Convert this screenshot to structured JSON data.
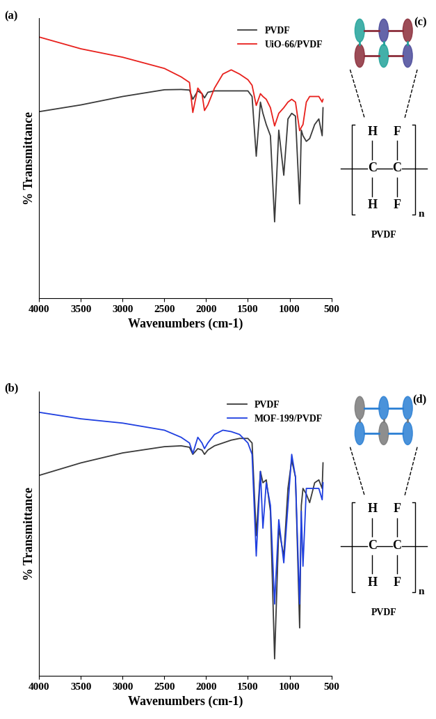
{
  "chart_data": [
    {
      "type": "line",
      "panel_label": "(a)",
      "x_label": "Wavenumbers (cm-1)",
      "y_label": "% Transmittance",
      "xlim": [
        4000,
        500
      ],
      "xticks": [
        4000,
        3500,
        3000,
        2500,
        2000,
        1500,
        1000,
        500
      ],
      "ylim": [
        0,
        100
      ],
      "tick_labels": "x",
      "legend": "upper right",
      "x": [
        4000,
        3500,
        3000,
        2500,
        2300,
        2200,
        2160,
        2100,
        2050,
        2020,
        1980,
        1900,
        1800,
        1700,
        1600,
        1500,
        1450,
        1400,
        1350,
        1320,
        1280,
        1230,
        1180,
        1130,
        1070,
        1020,
        975,
        930,
        880,
        860,
        840,
        800,
        760,
        700,
        650,
        610,
        600
      ],
      "series": [
        {
          "name": "PVDF",
          "color": "#3a3a3a",
          "values": [
            66.6,
            69,
            72,
            74.4,
            74.5,
            74.3,
            71,
            74,
            73,
            71.5,
            73.5,
            74,
            74,
            74,
            74,
            74,
            72,
            50.7,
            70,
            66,
            62,
            58,
            27.3,
            60,
            43.9,
            64,
            66,
            65,
            33.7,
            60,
            58,
            56,
            57,
            62,
            64,
            58,
            68
          ]
        },
        {
          "name": "UiO-66/PVDF",
          "color": "#e8201c",
          "values": [
            93.2,
            89,
            86,
            82,
            79,
            77,
            66.3,
            75,
            73,
            67,
            69,
            75,
            80,
            81.5,
            80,
            78,
            76,
            68.8,
            73,
            72,
            71,
            68,
            61.5,
            66,
            68,
            70,
            71,
            70,
            59.8,
            61,
            62,
            70,
            72,
            72,
            72,
            70,
            71
          ]
        }
      ],
      "inset": {
        "label": "(c)",
        "top_atoms": [
          "H",
          "F"
        ],
        "backbone": [
          "C",
          "C"
        ],
        "bottom_atoms": [
          "H",
          "F"
        ],
        "repeat": "n",
        "caption": "PVDF"
      }
    },
    {
      "type": "line",
      "panel_label": "(b)",
      "x_label": "Wavenumbers (cm-1)",
      "y_label": "% Transmittance",
      "xlim": [
        4000,
        500
      ],
      "xticks": [
        4000,
        3500,
        3000,
        2500,
        2000,
        1500,
        1000,
        500
      ],
      "ylim": [
        0,
        100
      ],
      "tick_labels": "x",
      "legend": "upper right",
      "x": [
        4000,
        3500,
        3000,
        2500,
        2300,
        2200,
        2160,
        2100,
        2050,
        2020,
        1980,
        1900,
        1800,
        1700,
        1600,
        1500,
        1450,
        1400,
        1350,
        1320,
        1280,
        1230,
        1180,
        1130,
        1070,
        1020,
        975,
        930,
        880,
        860,
        840,
        800,
        760,
        700,
        650,
        610,
        600
      ],
      "series": [
        {
          "name": "PVDF",
          "color": "#3a3a3a",
          "values": [
            70.6,
            75,
            78.5,
            80.7,
            81,
            80.5,
            78,
            80,
            79.5,
            78,
            79.5,
            81,
            82,
            83,
            83.6,
            83.6,
            82,
            49.4,
            72,
            68,
            69,
            58,
            6,
            52,
            42,
            66,
            76,
            70,
            16.9,
            60,
            66,
            64,
            61,
            68,
            69,
            66,
            75
          ]
        },
        {
          "name": "MOF-199/PVDF",
          "color": "#1f3fe0",
          "values": [
            92.8,
            90.5,
            89,
            86.5,
            84,
            82,
            78.3,
            84,
            82,
            80,
            82,
            85,
            86.5,
            86,
            85,
            82,
            78,
            42.2,
            72,
            52,
            68,
            60,
            25.3,
            55,
            39.8,
            60,
            78,
            70,
            25.3,
            58,
            38.6,
            66,
            66,
            66,
            66,
            62,
            68
          ]
        }
      ],
      "inset": {
        "label": "(d)",
        "top_atoms": [
          "H",
          "F"
        ],
        "backbone": [
          "C",
          "C"
        ],
        "bottom_atoms": [
          "H",
          "F"
        ],
        "repeat": "n",
        "caption": "PVDF"
      }
    }
  ]
}
